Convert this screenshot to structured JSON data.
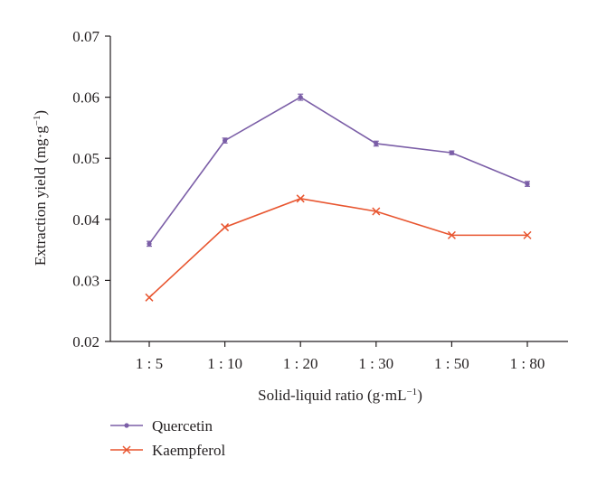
{
  "chart_data": {
    "type": "line",
    "xlabel": "Solid-liquid ratio (g·mL",
    "xlabel_sup": "−1",
    "xlabel_end": ")",
    "ylabel": "Extraction yield (mg·g",
    "ylabel_sup": "−1",
    "ylabel_end": ")",
    "categories": [
      "1 : 5",
      "1 : 10",
      "1 : 20",
      "1 : 30",
      "1 : 50",
      "1 : 80"
    ],
    "ylim": [
      0.02,
      0.07
    ],
    "yticks": [
      0.02,
      0.03,
      0.04,
      0.05,
      0.06,
      0.07
    ],
    "ytick_labels": [
      "0.02",
      "0.03",
      "0.04",
      "0.05",
      "0.06",
      "0.07"
    ],
    "grid": false,
    "legend_position": "bottom-left",
    "series": [
      {
        "name": "Quercetin",
        "color": "#7b5ea7",
        "marker": "dot",
        "values": [
          0.036,
          0.0529,
          0.06,
          0.0524,
          0.0509,
          0.0458
        ],
        "errors": [
          0.0004,
          0.0004,
          0.0005,
          0.0004,
          0.0003,
          0.0004
        ]
      },
      {
        "name": "Kaempferol",
        "color": "#e8552f",
        "marker": "x",
        "values": [
          0.0272,
          0.0387,
          0.0434,
          0.0413,
          0.0374,
          0.0374
        ]
      }
    ]
  }
}
